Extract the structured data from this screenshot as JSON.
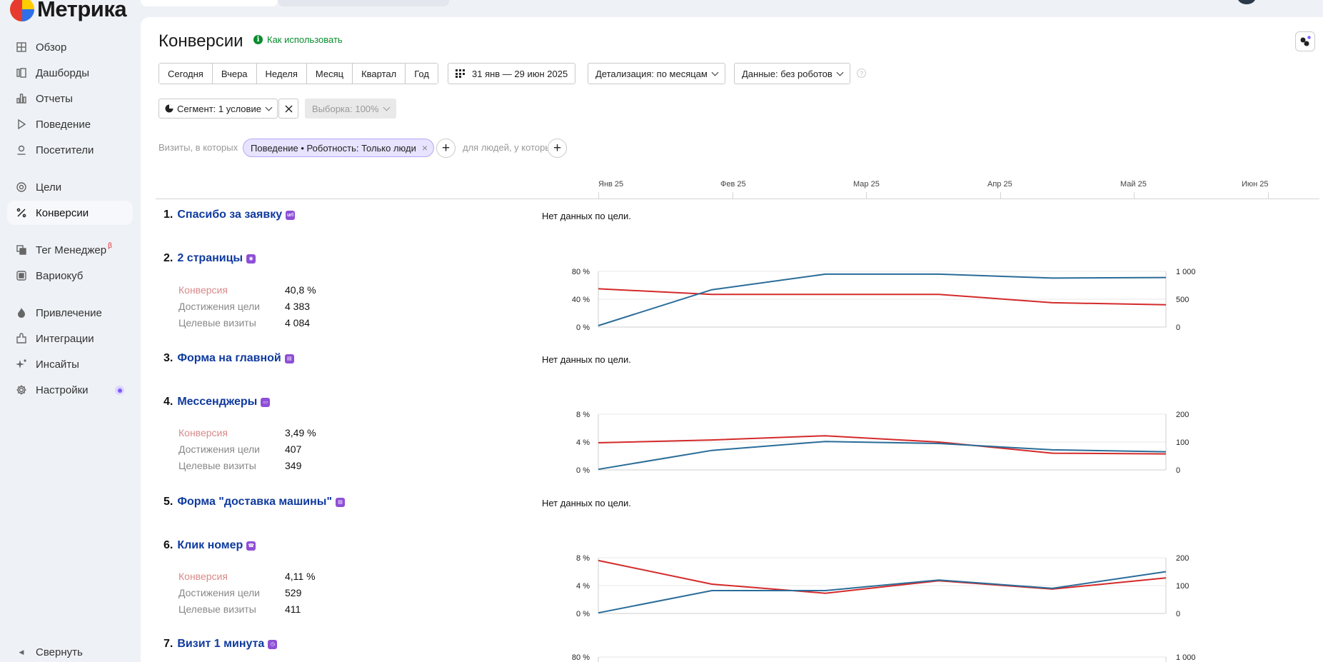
{
  "app": {
    "name": "Метрика"
  },
  "sidebar": {
    "items": [
      {
        "label": "Обзор",
        "icon": "grid-icon"
      },
      {
        "label": "Дашборды",
        "icon": "dashboard-icon"
      },
      {
        "label": "Отчеты",
        "icon": "bar-chart-icon"
      },
      {
        "label": "Поведение",
        "icon": "play-icon"
      },
      {
        "label": "Посетители",
        "icon": "person-icon"
      },
      {
        "label": "Цели",
        "icon": "target-icon"
      },
      {
        "label": "Конверсии",
        "icon": "percent-icon",
        "active": true
      },
      {
        "label": "Тег Менеджер",
        "icon": "tag-manager-icon",
        "badge": "β"
      },
      {
        "label": "Вариокуб",
        "icon": "cube-icon"
      },
      {
        "label": "Привлечение",
        "icon": "flame-icon"
      },
      {
        "label": "Интеграции",
        "icon": "puzzle-icon"
      },
      {
        "label": "Инсайты",
        "icon": "sparkle-icon"
      },
      {
        "label": "Настройки",
        "icon": "gear-icon"
      }
    ],
    "collapse_label": "Свернуть"
  },
  "header": {
    "title": "Конверсии",
    "howto_label": "Как использовать"
  },
  "period_buttons": [
    "Сегодня",
    "Вчера",
    "Неделя",
    "Месяц",
    "Квартал",
    "Год"
  ],
  "date_range": "31 янв — 29 июн 2025",
  "detail_label": "Детализация: по месяцам",
  "data_label": "Данные: без роботов",
  "segment_label": "Сегмент: 1 условие",
  "sample_label": "Выборка: 100%",
  "filter": {
    "visits_text": "Визиты, в которых",
    "chip_label": "Поведение • Роботность: Только люди",
    "people_text": "для людей, у которых"
  },
  "months": [
    "Янв 25",
    "Фев 25",
    "Мар 25",
    "Апр 25",
    "Май 25",
    "Июн 25"
  ],
  "metric_labels": {
    "conversion": "Конверсия",
    "reaches": "Достижения цели",
    "visits": "Целевые визиты"
  },
  "nodata_text": "Нет данных по цели.",
  "colors": {
    "conversion": "#d42a2a",
    "visits": "#2a6c98",
    "link": "#0f3a9e",
    "badge": "#8e4fd6"
  },
  "goals": [
    {
      "num": "1.",
      "name": "Спасибо за заявку",
      "icon": "url-icon",
      "has_data": false
    },
    {
      "num": "2.",
      "name": "2 страницы",
      "icon": "eye-icon",
      "has_data": true,
      "conversion": "40,8 %",
      "reaches": "4 383",
      "visits": "4 084"
    },
    {
      "num": "3.",
      "name": "Форма на главной",
      "icon": "form-icon",
      "has_data": false
    },
    {
      "num": "4.",
      "name": "Мессенджеры",
      "icon": "chat-icon",
      "has_data": true,
      "conversion": "3,49 %",
      "reaches": "407",
      "visits": "349"
    },
    {
      "num": "5.",
      "name": "Форма \"доставка машины\"",
      "icon": "form-icon",
      "has_data": false
    },
    {
      "num": "6.",
      "name": "Клик номер",
      "icon": "phone-icon",
      "has_data": true,
      "conversion": "4,11 %",
      "reaches": "529",
      "visits": "411"
    },
    {
      "num": "7.",
      "name": "Визит 1 минута",
      "icon": "clock-icon",
      "has_data": true
    }
  ],
  "chart_data": [
    {
      "type": "line",
      "goal": "2 страницы",
      "x": [
        "Янв 25",
        "Фев 25",
        "Мар 25",
        "Апр 25",
        "Май 25",
        "Июн 25"
      ],
      "left_ticks": [
        "0 %",
        "40 %",
        "80 %"
      ],
      "right_ticks": [
        "0",
        "500",
        "1 000"
      ],
      "left_range": [
        0,
        80
      ],
      "right_range": [
        0,
        1000
      ],
      "series": [
        {
          "axis": "left",
          "values": [
            55,
            47,
            47,
            47,
            35,
            32
          ]
        },
        {
          "axis": "right",
          "values": [
            25,
            670,
            950,
            950,
            880,
            890
          ]
        }
      ]
    },
    {
      "type": "line",
      "goal": "Мессенджеры",
      "x": [
        "Янв 25",
        "Фев 25",
        "Мар 25",
        "Апр 25",
        "Май 25",
        "Июн 25"
      ],
      "left_ticks": [
        "0 %",
        "4 %",
        "8 %"
      ],
      "right_ticks": [
        "0",
        "100",
        "200"
      ],
      "left_range": [
        0,
        8
      ],
      "right_range": [
        0,
        200
      ],
      "series": [
        {
          "axis": "left",
          "values": [
            3.9,
            4.3,
            4.9,
            4.0,
            2.4,
            2.3
          ]
        },
        {
          "axis": "right",
          "values": [
            2,
            70,
            102,
            95,
            72,
            65
          ]
        }
      ]
    },
    {
      "type": "line",
      "goal": "Клик номер",
      "x": [
        "Янв 25",
        "Фев 25",
        "Мар 25",
        "Апр 25",
        "Май 25",
        "Июн 25"
      ],
      "left_ticks": [
        "0 %",
        "4 %",
        "8 %"
      ],
      "right_ticks": [
        "0",
        "100",
        "200"
      ],
      "left_range": [
        0,
        8
      ],
      "right_range": [
        0,
        200
      ],
      "series": [
        {
          "axis": "left",
          "values": [
            7.6,
            4.2,
            2.9,
            4.7,
            3.5,
            5.1
          ]
        },
        {
          "axis": "right",
          "values": [
            2,
            82,
            82,
            120,
            90,
            150
          ]
        }
      ]
    },
    {
      "type": "line",
      "goal": "Визит 1 минута",
      "x": [
        "Янв 25",
        "Фев 25",
        "Мар 25",
        "Апр 25",
        "Май 25",
        "Июн 25"
      ],
      "left_ticks": [
        "80 %"
      ],
      "right_ticks": [
        "1 000"
      ],
      "left_range": [
        0,
        80
      ],
      "right_range": [
        0,
        1000
      ],
      "series": []
    }
  ]
}
